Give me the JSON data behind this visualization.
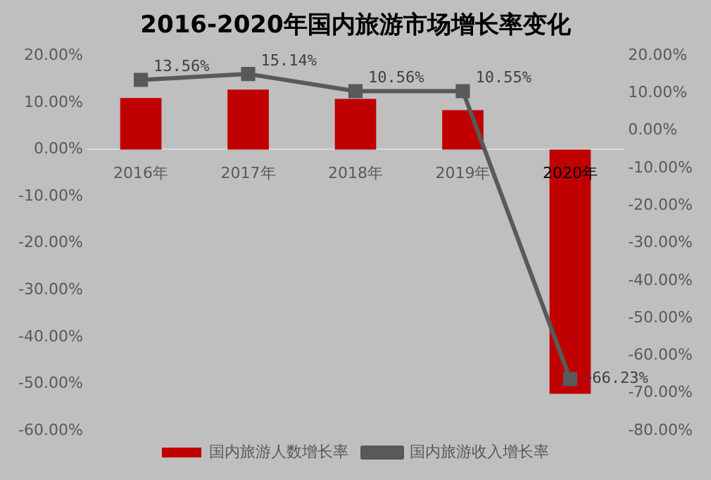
{
  "chart_data": {
    "type": "bar",
    "title": "2016-2020年国内旅游市场增长率变化",
    "categories": [
      "2016年",
      "2017年",
      "2018年",
      "2019年",
      "2020年"
    ],
    "series": [
      {
        "name": "国内旅游人数增长率",
        "color": "#c00000",
        "values": [
          11.0,
          12.8,
          10.8,
          8.4,
          -52.1
        ]
      },
      {
        "name": "国内旅游收入增长率",
        "type": "line",
        "axis": "y2",
        "color": "#595959",
        "marker": "square",
        "values": [
          13.56,
          15.14,
          10.56,
          10.55,
          -66.23
        ],
        "value_labels": [
          "13.56%",
          "15.14%",
          "10.56%",
          "10.55%",
          "−66.23%"
        ]
      }
    ],
    "ylim": [
      -60,
      20
    ],
    "yticks": [
      {
        "value": -60,
        "label": "-60.00%"
      },
      {
        "value": -50,
        "label": "-50.00%"
      },
      {
        "value": -40,
        "label": "-40.00%"
      },
      {
        "value": -30,
        "label": "-30.00%"
      },
      {
        "value": -20,
        "label": "-20.00%"
      },
      {
        "value": -10,
        "label": "-10.00%"
      },
      {
        "value": 0,
        "label": "0.00%"
      },
      {
        "value": 10,
        "label": "10.00%"
      },
      {
        "value": 20,
        "label": "20.00%"
      }
    ],
    "y2lim": [
      -80,
      20
    ],
    "y2ticks": [
      {
        "value": -80,
        "label": "-80.00%"
      },
      {
        "value": -70,
        "label": "-70.00%"
      },
      {
        "value": -60,
        "label": "-60.00%"
      },
      {
        "value": -50,
        "label": "-50.00%"
      },
      {
        "value": -40,
        "label": "-40.00%"
      },
      {
        "value": -30,
        "label": "-30.00%"
      },
      {
        "value": -20,
        "label": "-20.00%"
      },
      {
        "value": -10,
        "label": "-10.00%"
      },
      {
        "value": 0,
        "label": "0.00%"
      },
      {
        "value": 10,
        "label": "10.00%"
      },
      {
        "value": 20,
        "label": "20.00%"
      }
    ],
    "grid": false,
    "legend": "bottom"
  }
}
